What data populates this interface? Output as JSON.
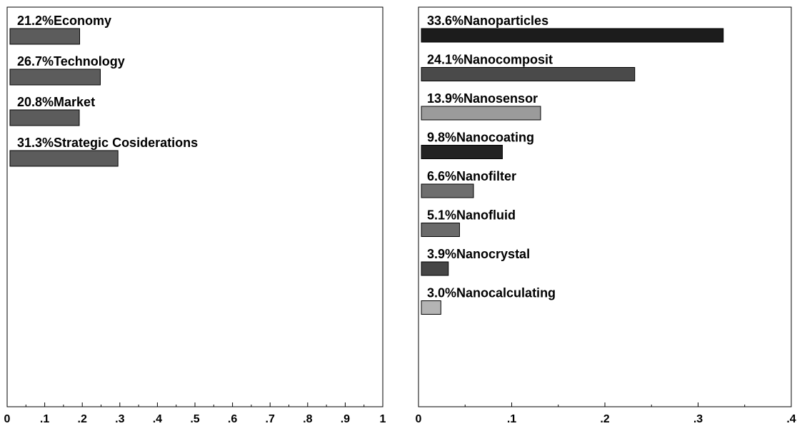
{
  "chart_data": [
    {
      "type": "bar",
      "orientation": "horizontal",
      "categories": [
        "Economy",
        "Technology",
        "Market",
        "Strategic  Cosiderations"
      ],
      "labels": [
        "21.2%Economy",
        "26.7%Technology",
        "20.8%Market",
        "31.3%Strategic  Cosiderations"
      ],
      "values": [
        0.193,
        0.248,
        0.192,
        0.295
      ],
      "xlim": [
        0,
        1
      ],
      "xticks": [
        "0",
        ".1",
        ".2",
        ".3",
        ".4",
        ".5",
        ".6",
        ".7",
        ".8",
        ".9",
        "1"
      ],
      "colors": [
        "#5c5c5c",
        "#5c5c5c",
        "#5c5c5c",
        "#5c5c5c"
      ],
      "grid": false
    },
    {
      "type": "bar",
      "orientation": "horizontal",
      "categories": [
        "Nanoparticles",
        "Nanocomposit",
        "Nanosensor",
        "Nanocoating",
        "Nanofilter",
        "Nanofluid",
        "Nanocrystal",
        "Nanocalculating"
      ],
      "labels": [
        "33.6%Nanoparticles",
        "24.1%Nanocomposit",
        "13.9%Nanosensor",
        "9.8%Nanocoating",
        "6.6%Nanofilter",
        "5.1%Nanofluid",
        "3.9%Nanocrystal",
        "3.0%Nanocalculating"
      ],
      "values": [
        0.327,
        0.232,
        0.131,
        0.09,
        0.059,
        0.044,
        0.032,
        0.024
      ],
      "xlim": [
        0,
        0.4
      ],
      "xticks": [
        "0",
        ".1",
        ".2",
        ".3",
        ".4"
      ],
      "colors": [
        "#1c1c1c",
        "#4a4a4a",
        "#9b9b9b",
        "#232323",
        "#6e6e6e",
        "#6a6a6a",
        "#464646",
        "#b4b4b4"
      ],
      "grid": false
    }
  ]
}
